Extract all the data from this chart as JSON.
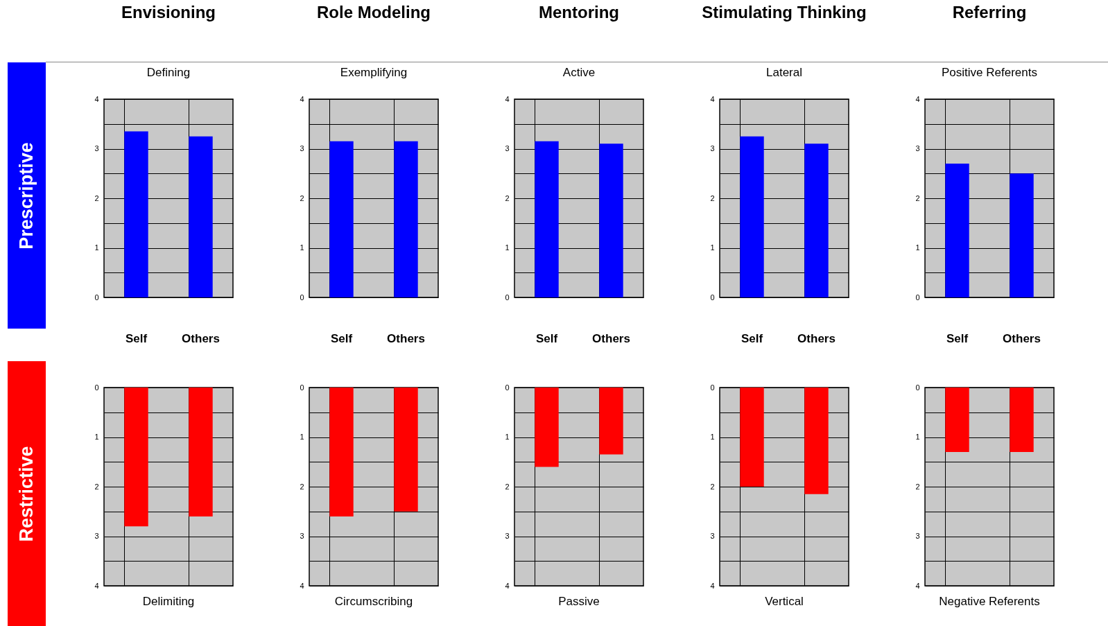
{
  "chart_data": [
    {
      "type": "bar",
      "title": "Envisioning",
      "subtitle": "Defining",
      "annotations": [
        "Prescriptive"
      ],
      "categories": [
        null,
        null
      ],
      "series": [
        {
          "color": "#0000ff",
          "values": [
            3.35,
            3.25
          ]
        }
      ],
      "ylim": [
        0,
        4
      ],
      "yticks": [
        0,
        {
          "value": 0.5,
          "label": null
        },
        1,
        {
          "value": 1.5,
          "label": null
        },
        2,
        {
          "value": 2.5,
          "label": null
        },
        3,
        {
          "value": 3.5,
          "label": null
        },
        4
      ],
      "grid": true
    },
    {
      "type": "bar",
      "title": "Role Modeling",
      "subtitle": "Exemplifying",
      "categories": [
        null,
        null
      ],
      "series": [
        {
          "color": "#0000ff",
          "values": [
            3.15,
            3.15
          ]
        }
      ],
      "ylim": [
        0,
        4
      ],
      "yticks": [
        0,
        {
          "value": 0.5,
          "label": null
        },
        1,
        {
          "value": 1.5,
          "label": null
        },
        2,
        {
          "value": 2.5,
          "label": null
        },
        3,
        {
          "value": 3.5,
          "label": null
        },
        4
      ],
      "grid": true
    },
    {
      "type": "bar",
      "title": "Mentoring",
      "subtitle": "Active",
      "categories": [
        null,
        null
      ],
      "series": [
        {
          "color": "#0000ff",
          "values": [
            3.15,
            3.1
          ]
        }
      ],
      "ylim": [
        0,
        4
      ],
      "yticks": [
        0,
        {
          "value": 0.5,
          "label": null
        },
        1,
        {
          "value": 1.5,
          "label": null
        },
        2,
        {
          "value": 2.5,
          "label": null
        },
        3,
        {
          "value": 3.5,
          "label": null
        },
        4
      ],
      "grid": true
    },
    {
      "type": "bar",
      "title": "Stimulating Thinking",
      "subtitle": "Lateral",
      "categories": [
        null,
        null
      ],
      "series": [
        {
          "color": "#0000ff",
          "values": [
            3.25,
            3.1
          ]
        }
      ],
      "ylim": [
        0,
        4
      ],
      "yticks": [
        0,
        {
          "value": 0.5,
          "label": null
        },
        1,
        {
          "value": 1.5,
          "label": null
        },
        2,
        {
          "value": 2.5,
          "label": null
        },
        3,
        {
          "value": 3.5,
          "label": null
        },
        4
      ],
      "grid": true
    },
    {
      "type": "bar",
      "title": "Referring",
      "subtitle": "Positive Referents",
      "categories": [
        null,
        null
      ],
      "series": [
        {
          "color": "#0000ff",
          "values": [
            2.7,
            2.5
          ]
        }
      ],
      "ylim": [
        0,
        4
      ],
      "yticks": [
        0,
        {
          "value": 0.5,
          "label": null
        },
        1,
        {
          "value": 1.5,
          "label": null
        },
        2,
        {
          "value": 2.5,
          "label": null
        },
        3,
        {
          "value": 3.5,
          "label": null
        },
        4
      ],
      "grid": true
    },
    {
      "type": "bar",
      "xlabel": "Delimiting",
      "annotations": [
        "Restrictive"
      ],
      "categories": [
        "Self",
        "Others"
      ],
      "series": [
        {
          "color": "#ff0000",
          "values": [
            2.8,
            2.6
          ]
        }
      ],
      "ylim": [
        4,
        0
      ],
      "yticks": [
        0,
        {
          "value": 0.5,
          "label": null
        },
        1,
        {
          "value": 1.5,
          "label": null
        },
        2,
        {
          "value": 2.5,
          "label": null
        },
        3,
        {
          "value": 3.5,
          "label": null
        },
        4
      ],
      "grid": true
    },
    {
      "type": "bar",
      "xlabel": "Circumscribing",
      "categories": [
        "Self",
        "Others"
      ],
      "series": [
        {
          "color": "#ff0000",
          "values": [
            2.6,
            2.5
          ]
        }
      ],
      "ylim": [
        4,
        0
      ],
      "yticks": [
        0,
        {
          "value": 0.5,
          "label": null
        },
        1,
        {
          "value": 1.5,
          "label": null
        },
        2,
        {
          "value": 2.5,
          "label": null
        },
        3,
        {
          "value": 3.5,
          "label": null
        },
        4
      ],
      "grid": true
    },
    {
      "type": "bar",
      "xlabel": "Passive",
      "categories": [
        "Self",
        "Others"
      ],
      "series": [
        {
          "color": "#ff0000",
          "values": [
            1.6,
            1.35
          ]
        }
      ],
      "ylim": [
        4,
        0
      ],
      "yticks": [
        0,
        {
          "value": 0.5,
          "label": null
        },
        1,
        {
          "value": 1.5,
          "label": null
        },
        2,
        {
          "value": 2.5,
          "label": null
        },
        3,
        {
          "value": 3.5,
          "label": null
        },
        4
      ],
      "grid": true
    },
    {
      "type": "bar",
      "xlabel": "Vertical",
      "categories": [
        "Self",
        "Others"
      ],
      "series": [
        {
          "color": "#ff0000",
          "values": [
            2.0,
            2.15
          ]
        }
      ],
      "ylim": [
        4,
        0
      ],
      "yticks": [
        0,
        {
          "value": 0.5,
          "label": null
        },
        1,
        {
          "value": 1.5,
          "label": null
        },
        2,
        {
          "value": 2.5,
          "label": null
        },
        3,
        {
          "value": 3.5,
          "label": null
        },
        4
      ],
      "grid": true
    },
    {
      "type": "bar",
      "xlabel": "Negative Referents",
      "categories": [
        "Self",
        "Others"
      ],
      "series": [
        {
          "color": "#ff0000",
          "values": [
            1.3,
            1.3
          ]
        }
      ],
      "ylim": [
        4,
        0
      ],
      "yticks": [
        0,
        {
          "value": 0.5,
          "label": null
        },
        1,
        {
          "value": 1.5,
          "label": null
        },
        2,
        {
          "value": 2.5,
          "label": null
        },
        3,
        {
          "value": 3.5,
          "label": null
        },
        4
      ],
      "grid": true
    }
  ]
}
